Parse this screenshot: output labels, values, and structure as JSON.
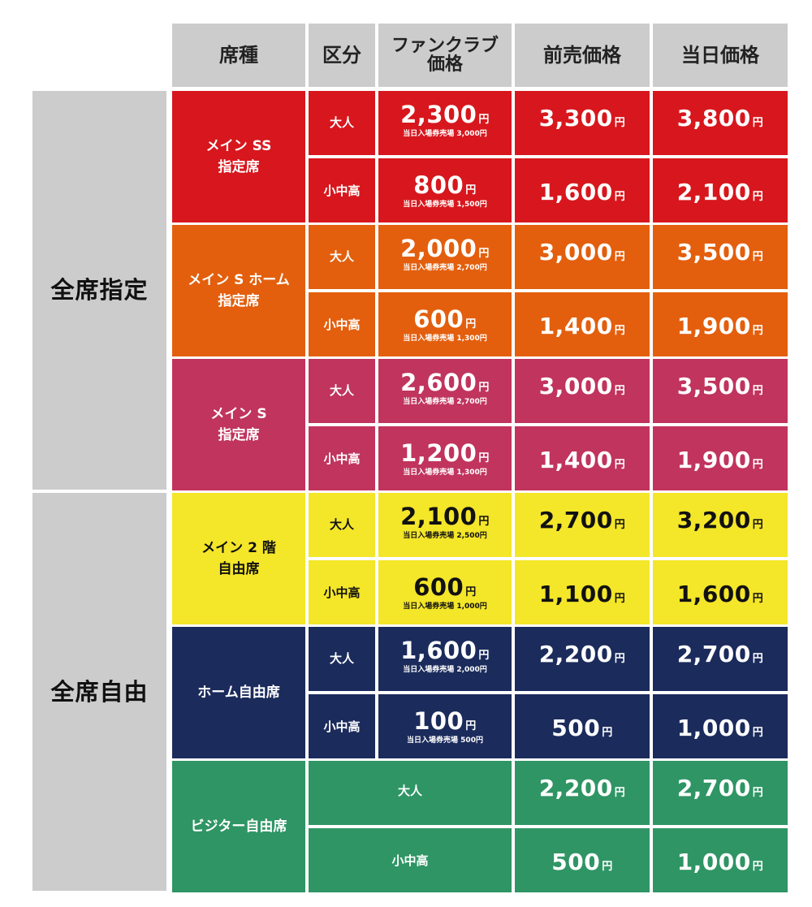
{
  "colors": {
    "header_bg": "#cccccc",
    "red": "#d7171d",
    "orange": "#e35f0d",
    "pink": "#c0345d",
    "yellow": "#f4e629",
    "navy": "#1b2b5c",
    "green": "#2f9565"
  },
  "headers": {
    "seat_type": "席種",
    "category": "区分",
    "fanclub_price": "ファンクラブ\n価格",
    "advance_price": "前売価格",
    "same_day_price": "当日価格"
  },
  "groups": {
    "reserved": "全席指定",
    "unreserved": "全席自由"
  },
  "yen": "円",
  "rows": [
    {
      "seat": "メイン SS\n指定席",
      "adult": {
        "category": "大人",
        "fc": "2,300",
        "fc_note": "当日入場券売場 3,000円",
        "advance": "3,300",
        "same_day": "3,800"
      },
      "child": {
        "category": "小中高",
        "fc": "800",
        "fc_note": "当日入場券売場 1,500円",
        "advance": "1,600",
        "same_day": "2,100"
      }
    },
    {
      "seat": "メイン S ホーム\n指定席",
      "adult": {
        "category": "大人",
        "fc": "2,000",
        "fc_note": "当日入場券売場 2,700円",
        "advance": "3,000",
        "same_day": "3,500"
      },
      "child": {
        "category": "小中高",
        "fc": "600",
        "fc_note": "当日入場券売場 1,300円",
        "advance": "1,400",
        "same_day": "1,900"
      }
    },
    {
      "seat": "メイン S\n指定席",
      "adult": {
        "category": "大人",
        "fc": "2,600",
        "fc_note": "当日入場券売場 2,700円",
        "advance": "3,000",
        "same_day": "3,500"
      },
      "child": {
        "category": "小中高",
        "fc": "1,200",
        "fc_note": "当日入場券売場 1,300円",
        "advance": "1,400",
        "same_day": "1,900"
      }
    },
    {
      "seat": "メイン 2 階\n自由席",
      "adult": {
        "category": "大人",
        "fc": "2,100",
        "fc_note": "当日入場券売場 2,500円",
        "advance": "2,700",
        "same_day": "3,200"
      },
      "child": {
        "category": "小中高",
        "fc": "600",
        "fc_note": "当日入場券売場 1,000円",
        "advance": "1,100",
        "same_day": "1,600"
      }
    },
    {
      "seat": "ホーム自由席",
      "adult": {
        "category": "大人",
        "fc": "1,600",
        "fc_note": "当日入場券売場 2,000円",
        "advance": "2,200",
        "same_day": "2,700"
      },
      "child": {
        "category": "小中高",
        "fc": "100",
        "fc_note": "当日入場券売場 500円",
        "advance": "500",
        "same_day": "1,000"
      }
    },
    {
      "seat": "ビジター自由席",
      "adult": {
        "category": "大人",
        "advance": "2,200",
        "same_day": "2,700"
      },
      "child": {
        "category": "小中高",
        "advance": "500",
        "same_day": "1,000"
      }
    }
  ]
}
